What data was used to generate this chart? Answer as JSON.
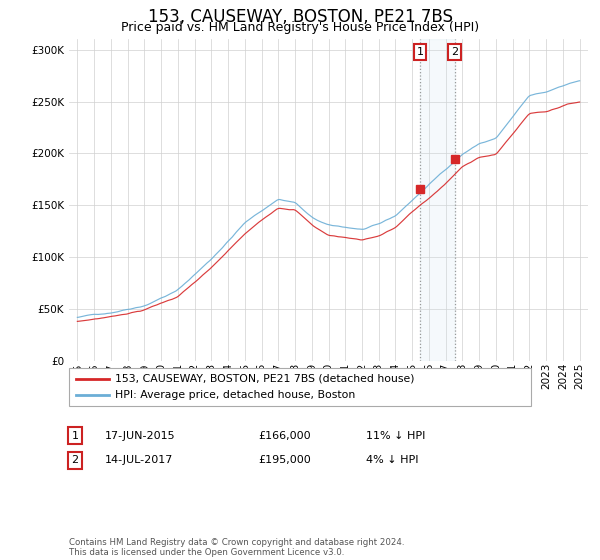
{
  "title": "153, CAUSEWAY, BOSTON, PE21 7BS",
  "subtitle": "Price paid vs. HM Land Registry's House Price Index (HPI)",
  "legend_entry1": "153, CAUSEWAY, BOSTON, PE21 7BS (detached house)",
  "legend_entry2": "HPI: Average price, detached house, Boston",
  "annotation1_date": "17-JUN-2015",
  "annotation1_price": 166000,
  "annotation1_hpi": "11% ↓ HPI",
  "annotation1_year": 2015.46,
  "annotation2_date": "14-JUL-2017",
  "annotation2_price": 195000,
  "annotation2_hpi": "4% ↓ HPI",
  "annotation2_year": 2017.54,
  "ylim_min": 0,
  "ylim_max": 310000,
  "xlim_min": 1994.5,
  "xlim_max": 2025.5,
  "background_color": "#ffffff",
  "hpi_line_color": "#6baed6",
  "price_line_color": "#d62728",
  "grid_color": "#d0d0d0",
  "annotation_box_color": "#d0e4f0",
  "footer_text": "Contains HM Land Registry data © Crown copyright and database right 2024.\nThis data is licensed under the Open Government Licence v3.0.",
  "title_fontsize": 12,
  "subtitle_fontsize": 9,
  "tick_fontsize": 7.5
}
